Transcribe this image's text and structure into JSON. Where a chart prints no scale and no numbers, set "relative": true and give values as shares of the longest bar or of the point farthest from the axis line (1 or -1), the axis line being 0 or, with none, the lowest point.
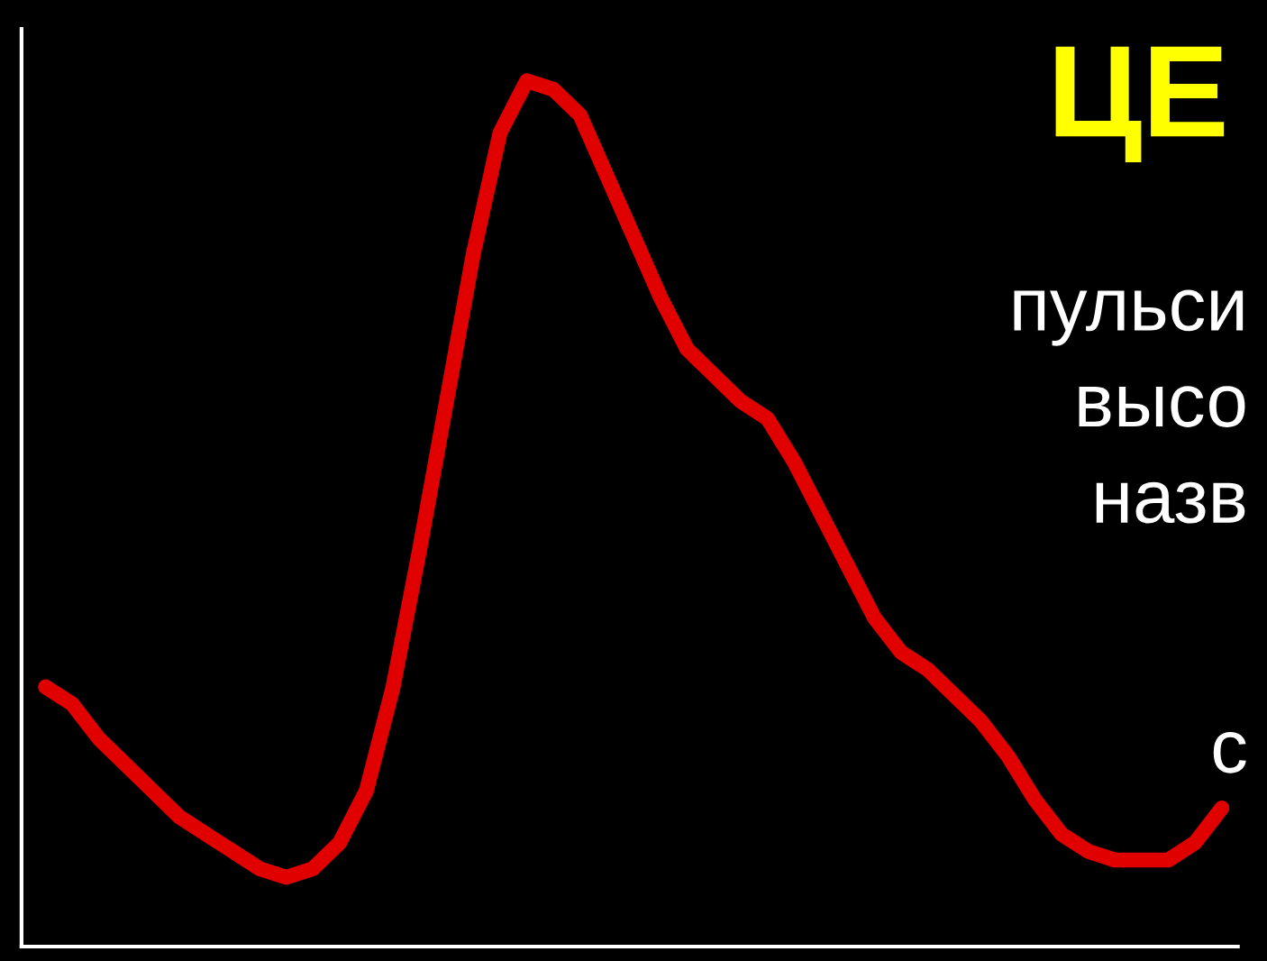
{
  "chart_data": {
    "type": "line",
    "relative": true,
    "title": "ЦЕ",
    "annotations": [
      "пульси",
      "высо",
      "назв",
      "с"
    ],
    "categories": [
      null,
      null,
      null,
      null,
      null,
      null,
      null,
      null,
      null,
      null,
      null,
      null,
      null,
      null,
      null,
      null,
      null,
      null,
      null,
      null,
      null,
      null,
      null,
      null,
      null,
      null,
      null,
      null,
      null,
      null,
      null,
      null,
      null,
      null,
      null,
      null,
      null,
      null,
      null,
      null,
      null,
      null,
      null,
      null,
      null
    ],
    "series": [
      {
        "color": "#e00000",
        "values": [
          0.3,
          0.28,
          0.24,
          0.21,
          0.18,
          0.15,
          0.13,
          0.11,
          0.09,
          0.08,
          0.09,
          0.12,
          0.18,
          0.3,
          0.46,
          0.63,
          0.8,
          0.94,
          1.0,
          0.99,
          0.96,
          0.89,
          0.82,
          0.75,
          0.69,
          0.66,
          0.63,
          0.61,
          0.56,
          0.5,
          0.44,
          0.38,
          0.34,
          0.32,
          0.29,
          0.26,
          0.22,
          0.17,
          0.13,
          0.11,
          0.1,
          0.1,
          0.1,
          0.12,
          0.16
        ]
      }
    ]
  }
}
